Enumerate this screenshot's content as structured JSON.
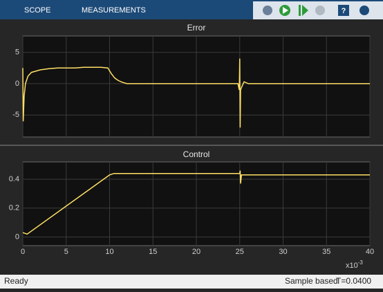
{
  "toolbar": {
    "tabs": [
      "SCOPE",
      "MEASUREMENTS"
    ]
  },
  "status": {
    "state": "Ready",
    "mode": "Sample based",
    "time": "T=0.0400"
  },
  "x_axis_multiplier": "x10",
  "x_axis_exponent": "-3",
  "chart_data": [
    {
      "type": "line",
      "title": "Error",
      "color": "#ffe066",
      "grid": true,
      "x": [
        0,
        0.05,
        0.15,
        0.3,
        0.6,
        1,
        2,
        3,
        4,
        5,
        6,
        7,
        8,
        9,
        9.8,
        10.2,
        10.6,
        11,
        11.5,
        12,
        15,
        20,
        24.8,
        24.95,
        25,
        25.05,
        25.1,
        25.2,
        25.5,
        26,
        30,
        35,
        40
      ],
      "values": [
        2.5,
        -6,
        -2,
        0,
        1.2,
        1.8,
        2.2,
        2.4,
        2.5,
        2.5,
        2.5,
        2.6,
        2.6,
        2.6,
        2.5,
        1.6,
        0.9,
        0.5,
        0.2,
        0,
        0,
        0,
        0,
        -1,
        4,
        -7,
        -1,
        -0.6,
        0.3,
        0,
        0,
        0,
        0
      ],
      "xlim": [
        0,
        40
      ],
      "xticks": [
        0,
        5,
        10,
        15,
        20,
        25,
        30,
        35,
        40
      ],
      "ylim": [
        -8.5,
        7.6
      ],
      "yticks": [
        -5,
        0,
        5
      ]
    },
    {
      "type": "line",
      "title": "Control",
      "color": "#ffe066",
      "grid": true,
      "x": [
        0,
        0.5,
        10,
        10.5,
        11,
        25,
        25.05,
        25.1,
        25.2,
        26,
        40
      ],
      "values": [
        0.03,
        0.02,
        0.43,
        0.44,
        0.44,
        0.44,
        0.46,
        0.37,
        0.43,
        0.43,
        0.43
      ],
      "xlim": [
        0,
        40
      ],
      "xticks": [
        0,
        5,
        10,
        15,
        20,
        25,
        30,
        35,
        40
      ],
      "ylim": [
        -0.06,
        0.52
      ],
      "yticks": [
        0,
        0.2,
        0.4
      ]
    }
  ]
}
